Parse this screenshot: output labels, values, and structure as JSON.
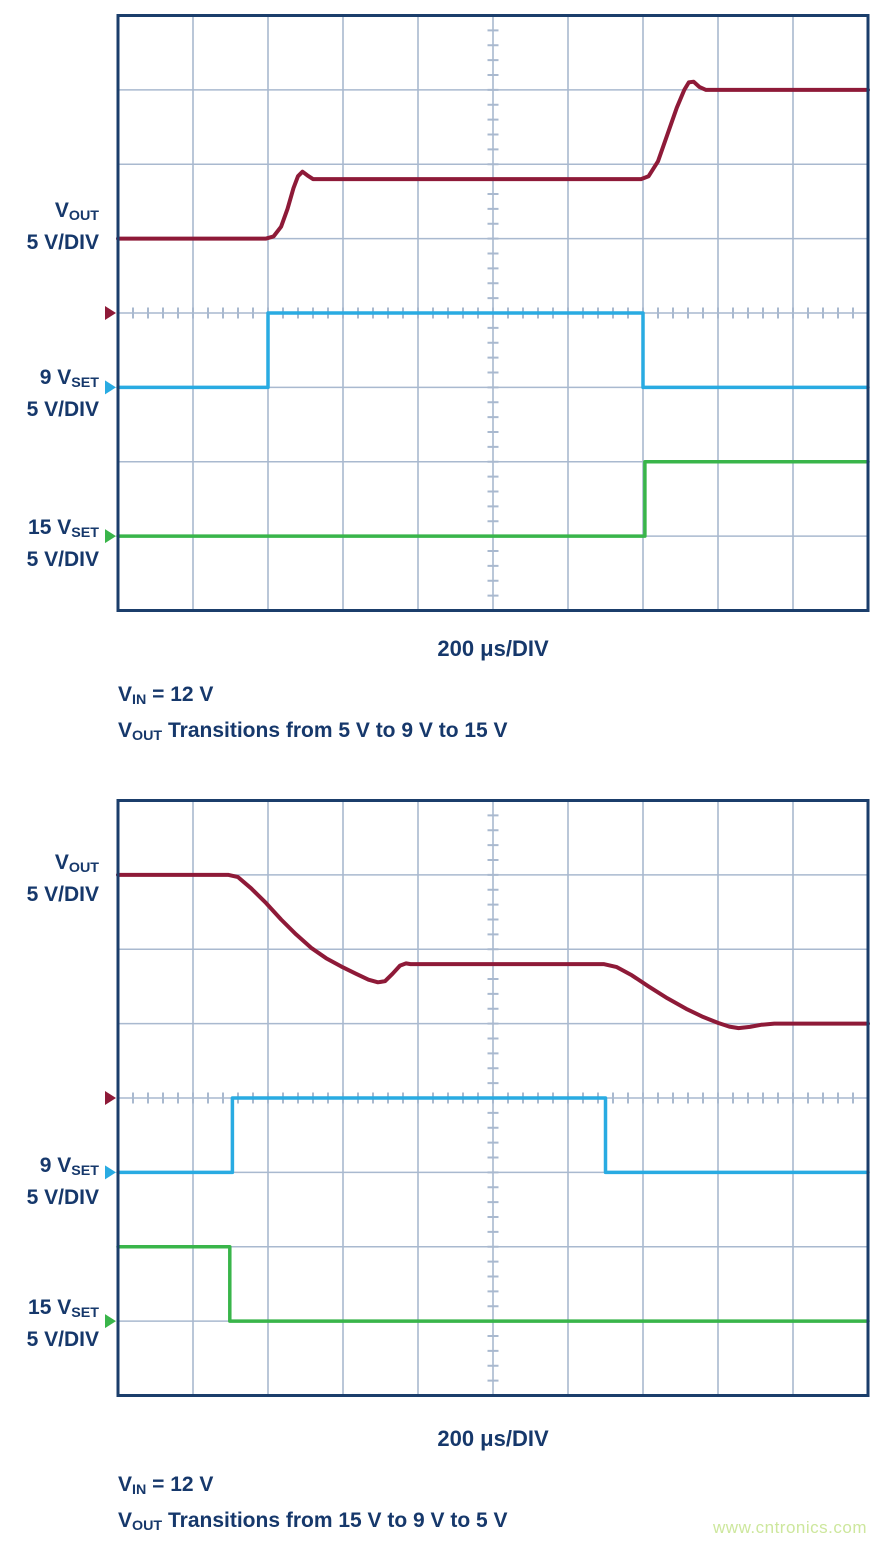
{
  "page": {
    "watermark": "www.cntronics.com",
    "colors": {
      "text": "#16386b",
      "border": "#1b3e6b",
      "grid": "#a9b9cf",
      "vout": "#8e1a38",
      "vset9": "#29abe2",
      "vset15": "#39b54a",
      "watermark": "#cde79d"
    }
  },
  "scopes": [
    {
      "x_label": "200 μs/DIV",
      "y_labels": [
        {
          "base": "V",
          "sub": "OUT",
          "scale": "5 V/DIV"
        },
        {
          "base": "9 V",
          "sub": "SET",
          "scale": "5 V/DIV"
        },
        {
          "base": "15 V",
          "sub": "SET",
          "scale": "5 V/DIV"
        }
      ],
      "caption": {
        "l1_base": "V",
        "l1_sub": "IN",
        "l1_rest": " = 12 V",
        "l2_base": "V",
        "l2_sub": "OUT",
        "l2_rest": " Transitions from 5 V to 9 V to 15 V"
      }
    },
    {
      "x_label": "200 μs/DIV",
      "y_labels": [
        {
          "base": "V",
          "sub": "OUT",
          "scale": "5 V/DIV"
        },
        {
          "base": "9 V",
          "sub": "SET",
          "scale": "5 V/DIV"
        },
        {
          "base": "15 V",
          "sub": "SET",
          "scale": "5 V/DIV"
        }
      ],
      "caption": {
        "l1_base": "V",
        "l1_sub": "IN",
        "l1_rest": " = 12 V",
        "l2_base": "V",
        "l2_sub": "OUT",
        "l2_rest": " Transitions from 15 V to 9 V to 5 V"
      }
    }
  ],
  "chart_data": [
    {
      "type": "line",
      "title": "VOUT Transitions from 5 V to 9 V to 15 V",
      "annotations": [
        "VIN = 12 V",
        "VOUT Transitions from 5 V to 9 V to 15 V"
      ],
      "x_label": "200 μs/DIV",
      "x_units": "μs",
      "y_units": "V",
      "x_per_div": 200,
      "y_per_div": 5,
      "divisions": {
        "x": 10,
        "y": 8
      },
      "x_range": [
        0,
        2000
      ],
      "legend": [
        "VOUT 5 V/DIV",
        "9 VSET 5 V/DIV",
        "15 VSET 5 V/DIV"
      ],
      "series": [
        {
          "name": "VOUT",
          "color": "#8e1a38",
          "width": 4,
          "ground_div": 4,
          "points": [
            [
              0,
              5
            ],
            [
              395,
              5
            ],
            [
              415,
              5.15
            ],
            [
              435,
              5.8
            ],
            [
              452,
              7.0
            ],
            [
              468,
              8.4
            ],
            [
              480,
              9.2
            ],
            [
              492,
              9.5
            ],
            [
              505,
              9.25
            ],
            [
              520,
              9.0
            ],
            [
              1395,
              9.0
            ],
            [
              1415,
              9.2
            ],
            [
              1440,
              10.2
            ],
            [
              1465,
              12.0
            ],
            [
              1490,
              13.8
            ],
            [
              1510,
              15.0
            ],
            [
              1522,
              15.5
            ],
            [
              1535,
              15.55
            ],
            [
              1550,
              15.2
            ],
            [
              1568,
              15.0
            ],
            [
              2000,
              15.0
            ]
          ]
        },
        {
          "name": "9 VSET",
          "color": "#29abe2",
          "width": 3.5,
          "ground_div": 3,
          "points": [
            [
              0,
              0
            ],
            [
              400,
              0
            ],
            [
              400,
              5
            ],
            [
              1400,
              5
            ],
            [
              1400,
              0
            ],
            [
              2000,
              0
            ]
          ]
        },
        {
          "name": "15 VSET",
          "color": "#39b54a",
          "width": 3.5,
          "ground_div": 1,
          "points": [
            [
              0,
              0
            ],
            [
              1405,
              0
            ],
            [
              1405,
              5
            ],
            [
              2000,
              5
            ]
          ]
        }
      ]
    },
    {
      "type": "line",
      "title": "VOUT Transitions from 15 V to 9 V to 5 V",
      "annotations": [
        "VIN = 12 V",
        "VOUT Transitions from 15 V to 9 V to 5 V"
      ],
      "x_label": "200 μs/DIV",
      "x_units": "μs",
      "y_units": "V",
      "x_per_div": 200,
      "y_per_div": 5,
      "divisions": {
        "x": 10,
        "y": 8
      },
      "x_range": [
        0,
        2000
      ],
      "legend": [
        "VOUT 5 V/DIV",
        "9 VSET 5 V/DIV",
        "15 VSET 5 V/DIV"
      ],
      "series": [
        {
          "name": "VOUT",
          "color": "#8e1a38",
          "width": 4,
          "ground_div": 4,
          "points": [
            [
              0,
              15
            ],
            [
              295,
              15
            ],
            [
              320,
              14.85
            ],
            [
              355,
              14.1
            ],
            [
              395,
              13.1
            ],
            [
              435,
              12.0
            ],
            [
              475,
              11.0
            ],
            [
              515,
              10.1
            ],
            [
              555,
              9.4
            ],
            [
              595,
              8.85
            ],
            [
              635,
              8.35
            ],
            [
              668,
              7.95
            ],
            [
              693,
              7.78
            ],
            [
              712,
              7.85
            ],
            [
              732,
              8.35
            ],
            [
              752,
              8.9
            ],
            [
              768,
              9.05
            ],
            [
              780,
              9.0
            ],
            [
              1295,
              9.0
            ],
            [
              1330,
              8.8
            ],
            [
              1370,
              8.25
            ],
            [
              1415,
              7.5
            ],
            [
              1465,
              6.7
            ],
            [
              1515,
              6.0
            ],
            [
              1560,
              5.45
            ],
            [
              1600,
              5.05
            ],
            [
              1630,
              4.8
            ],
            [
              1655,
              4.7
            ],
            [
              1685,
              4.78
            ],
            [
              1715,
              4.92
            ],
            [
              1750,
              5.0
            ],
            [
              2000,
              5.0
            ]
          ]
        },
        {
          "name": "9 VSET",
          "color": "#29abe2",
          "width": 3.5,
          "ground_div": 3,
          "points": [
            [
              0,
              0
            ],
            [
              305,
              0
            ],
            [
              305,
              5
            ],
            [
              1300,
              5
            ],
            [
              1300,
              0
            ],
            [
              2000,
              0
            ]
          ]
        },
        {
          "name": "15 VSET",
          "color": "#39b54a",
          "width": 3.5,
          "ground_div": 1,
          "points": [
            [
              0,
              5
            ],
            [
              298,
              5
            ],
            [
              298,
              0
            ],
            [
              2000,
              0
            ]
          ]
        }
      ]
    }
  ]
}
